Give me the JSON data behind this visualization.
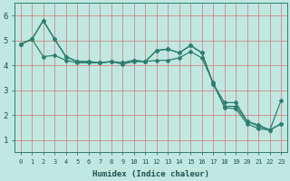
{
  "xlabel": "Humidex (Indice chaleur)",
  "background_color": "#c0e8e0",
  "line_color": "#2e7d6e",
  "xlim": [
    -0.5,
    23.5
  ],
  "ylim": [
    0.5,
    6.5
  ],
  "yticks": [
    1,
    2,
    3,
    4,
    5,
    6
  ],
  "xticks": [
    0,
    1,
    2,
    3,
    4,
    5,
    6,
    7,
    8,
    9,
    10,
    11,
    12,
    13,
    14,
    15,
    16,
    17,
    18,
    19,
    20,
    21,
    22,
    23
  ],
  "s1": [
    4.85,
    5.05,
    5.8,
    5.05,
    4.35,
    4.15,
    4.15,
    4.1,
    4.15,
    4.1,
    4.2,
    4.15,
    4.6,
    4.65,
    4.5,
    4.8,
    4.5,
    3.25,
    2.5,
    2.5,
    1.75,
    1.6,
    1.4,
    1.65
  ],
  "s2": [
    4.85,
    5.05,
    5.8,
    5.05,
    4.35,
    4.15,
    4.15,
    4.1,
    4.15,
    4.1,
    4.2,
    4.15,
    4.6,
    4.65,
    4.5,
    4.8,
    4.5,
    3.25,
    2.35,
    2.35,
    1.75,
    1.55,
    1.4,
    2.6
  ],
  "s3": [
    4.85,
    5.05,
    4.35,
    4.4,
    4.2,
    4.1,
    4.1,
    4.1,
    4.15,
    4.05,
    4.15,
    4.15,
    4.2,
    4.2,
    4.3,
    4.55,
    4.3,
    3.3,
    2.3,
    2.25,
    1.65,
    1.45,
    1.4,
    1.65
  ]
}
